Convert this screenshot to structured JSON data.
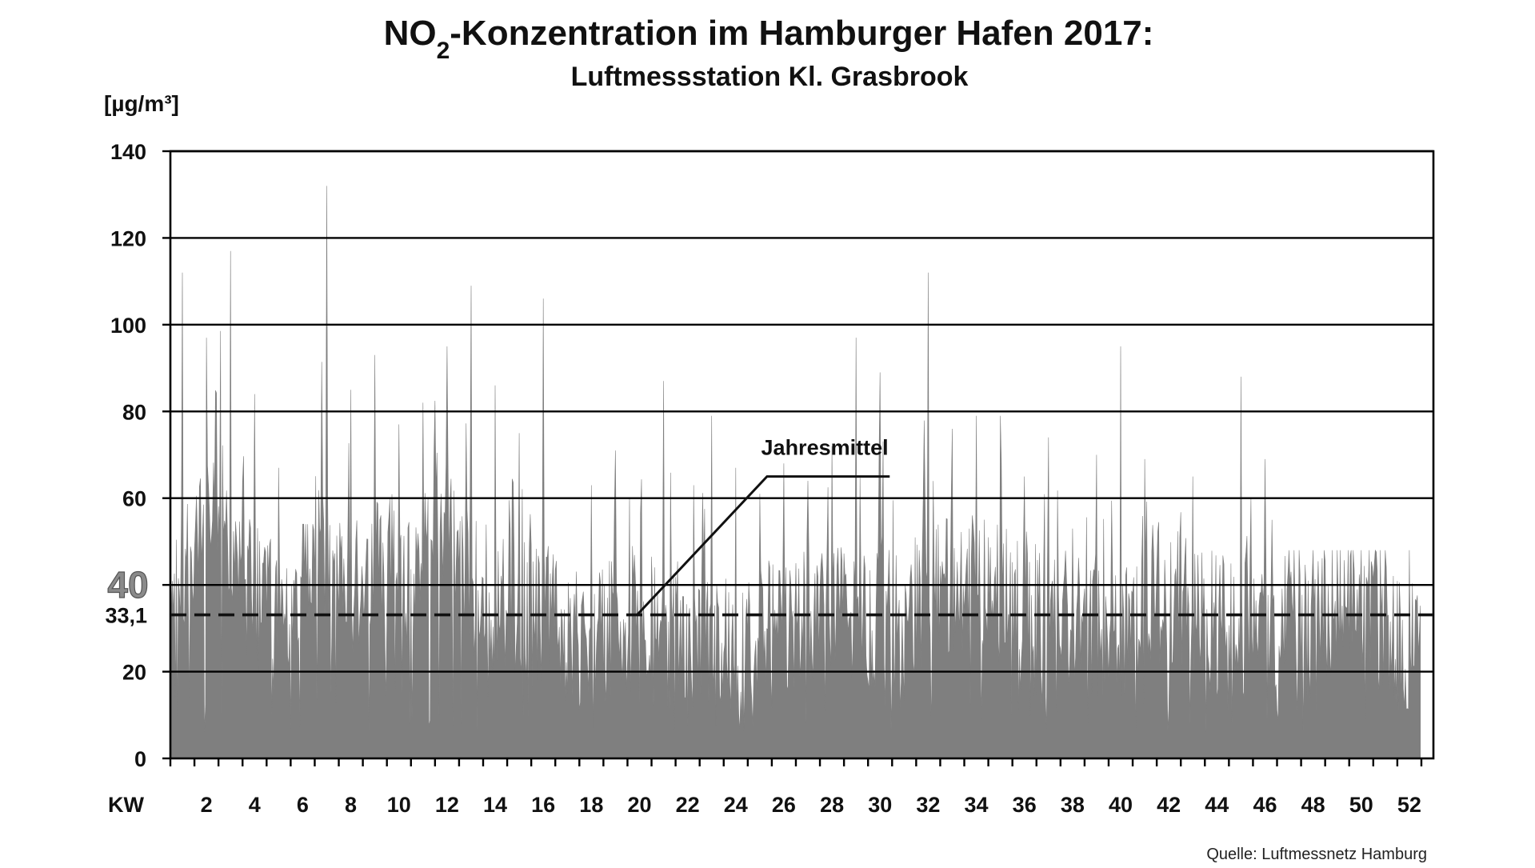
{
  "chart_data": {
    "type": "bar",
    "title": "NO",
    "title_subscript": "2",
    "title_rest": "-Konzentration im Hamburger Hafen 2017:",
    "subtitle": "Luftmessstation Kl. Grasbrook",
    "ylabel": "[µg/m³]",
    "xlabel": "KW",
    "ylim": [
      0,
      140
    ],
    "xlim": [
      0,
      52.5
    ],
    "y_ticks": [
      "0",
      "20",
      "40",
      "60",
      "80",
      "100",
      "120",
      "140"
    ],
    "y_limit_label": "40",
    "x_ticks": [
      "2",
      "4",
      "6",
      "8",
      "10",
      "12",
      "14",
      "16",
      "18",
      "20",
      "22",
      "24",
      "26",
      "28",
      "30",
      "32",
      "34",
      "36",
      "38",
      "40",
      "42",
      "44",
      "46",
      "48",
      "50",
      "52"
    ],
    "grid": true,
    "bar_color": "#7f7f7f",
    "mean": {
      "value": 33.1,
      "label": "33,1",
      "annotation": "Jahresmittel",
      "style": "dashed"
    },
    "series": [
      {
        "week_values": [
          38,
          45,
          65,
          40,
          34,
          28,
          55,
          40,
          40,
          45,
          40,
          60,
          45,
          35,
          35,
          32,
          33,
          28,
          30,
          32,
          32,
          30,
          28,
          28,
          25,
          28,
          32,
          35,
          33,
          32,
          34,
          35,
          38,
          40,
          38,
          36,
          35,
          33,
          30,
          30,
          33,
          38,
          35,
          32,
          33,
          35,
          32,
          33,
          35,
          38,
          38,
          25
        ],
        "weekly_maxima": [
          112,
          97,
          117,
          84,
          67,
          54,
          132,
          85,
          93,
          77,
          82,
          95,
          109,
          86,
          75,
          106,
          87,
          63,
          71,
          91,
          87,
          76,
          79,
          67,
          61,
          68,
          64,
          72,
          97,
          89,
          81,
          112,
          76,
          79,
          79,
          65,
          74,
          53,
          70,
          95,
          69,
          74,
          65,
          62,
          88,
          69,
          48,
          48,
          48,
          48,
          48,
          48
        ]
      }
    ]
  },
  "source": "Quelle: Luftmessnetz Hamburg"
}
